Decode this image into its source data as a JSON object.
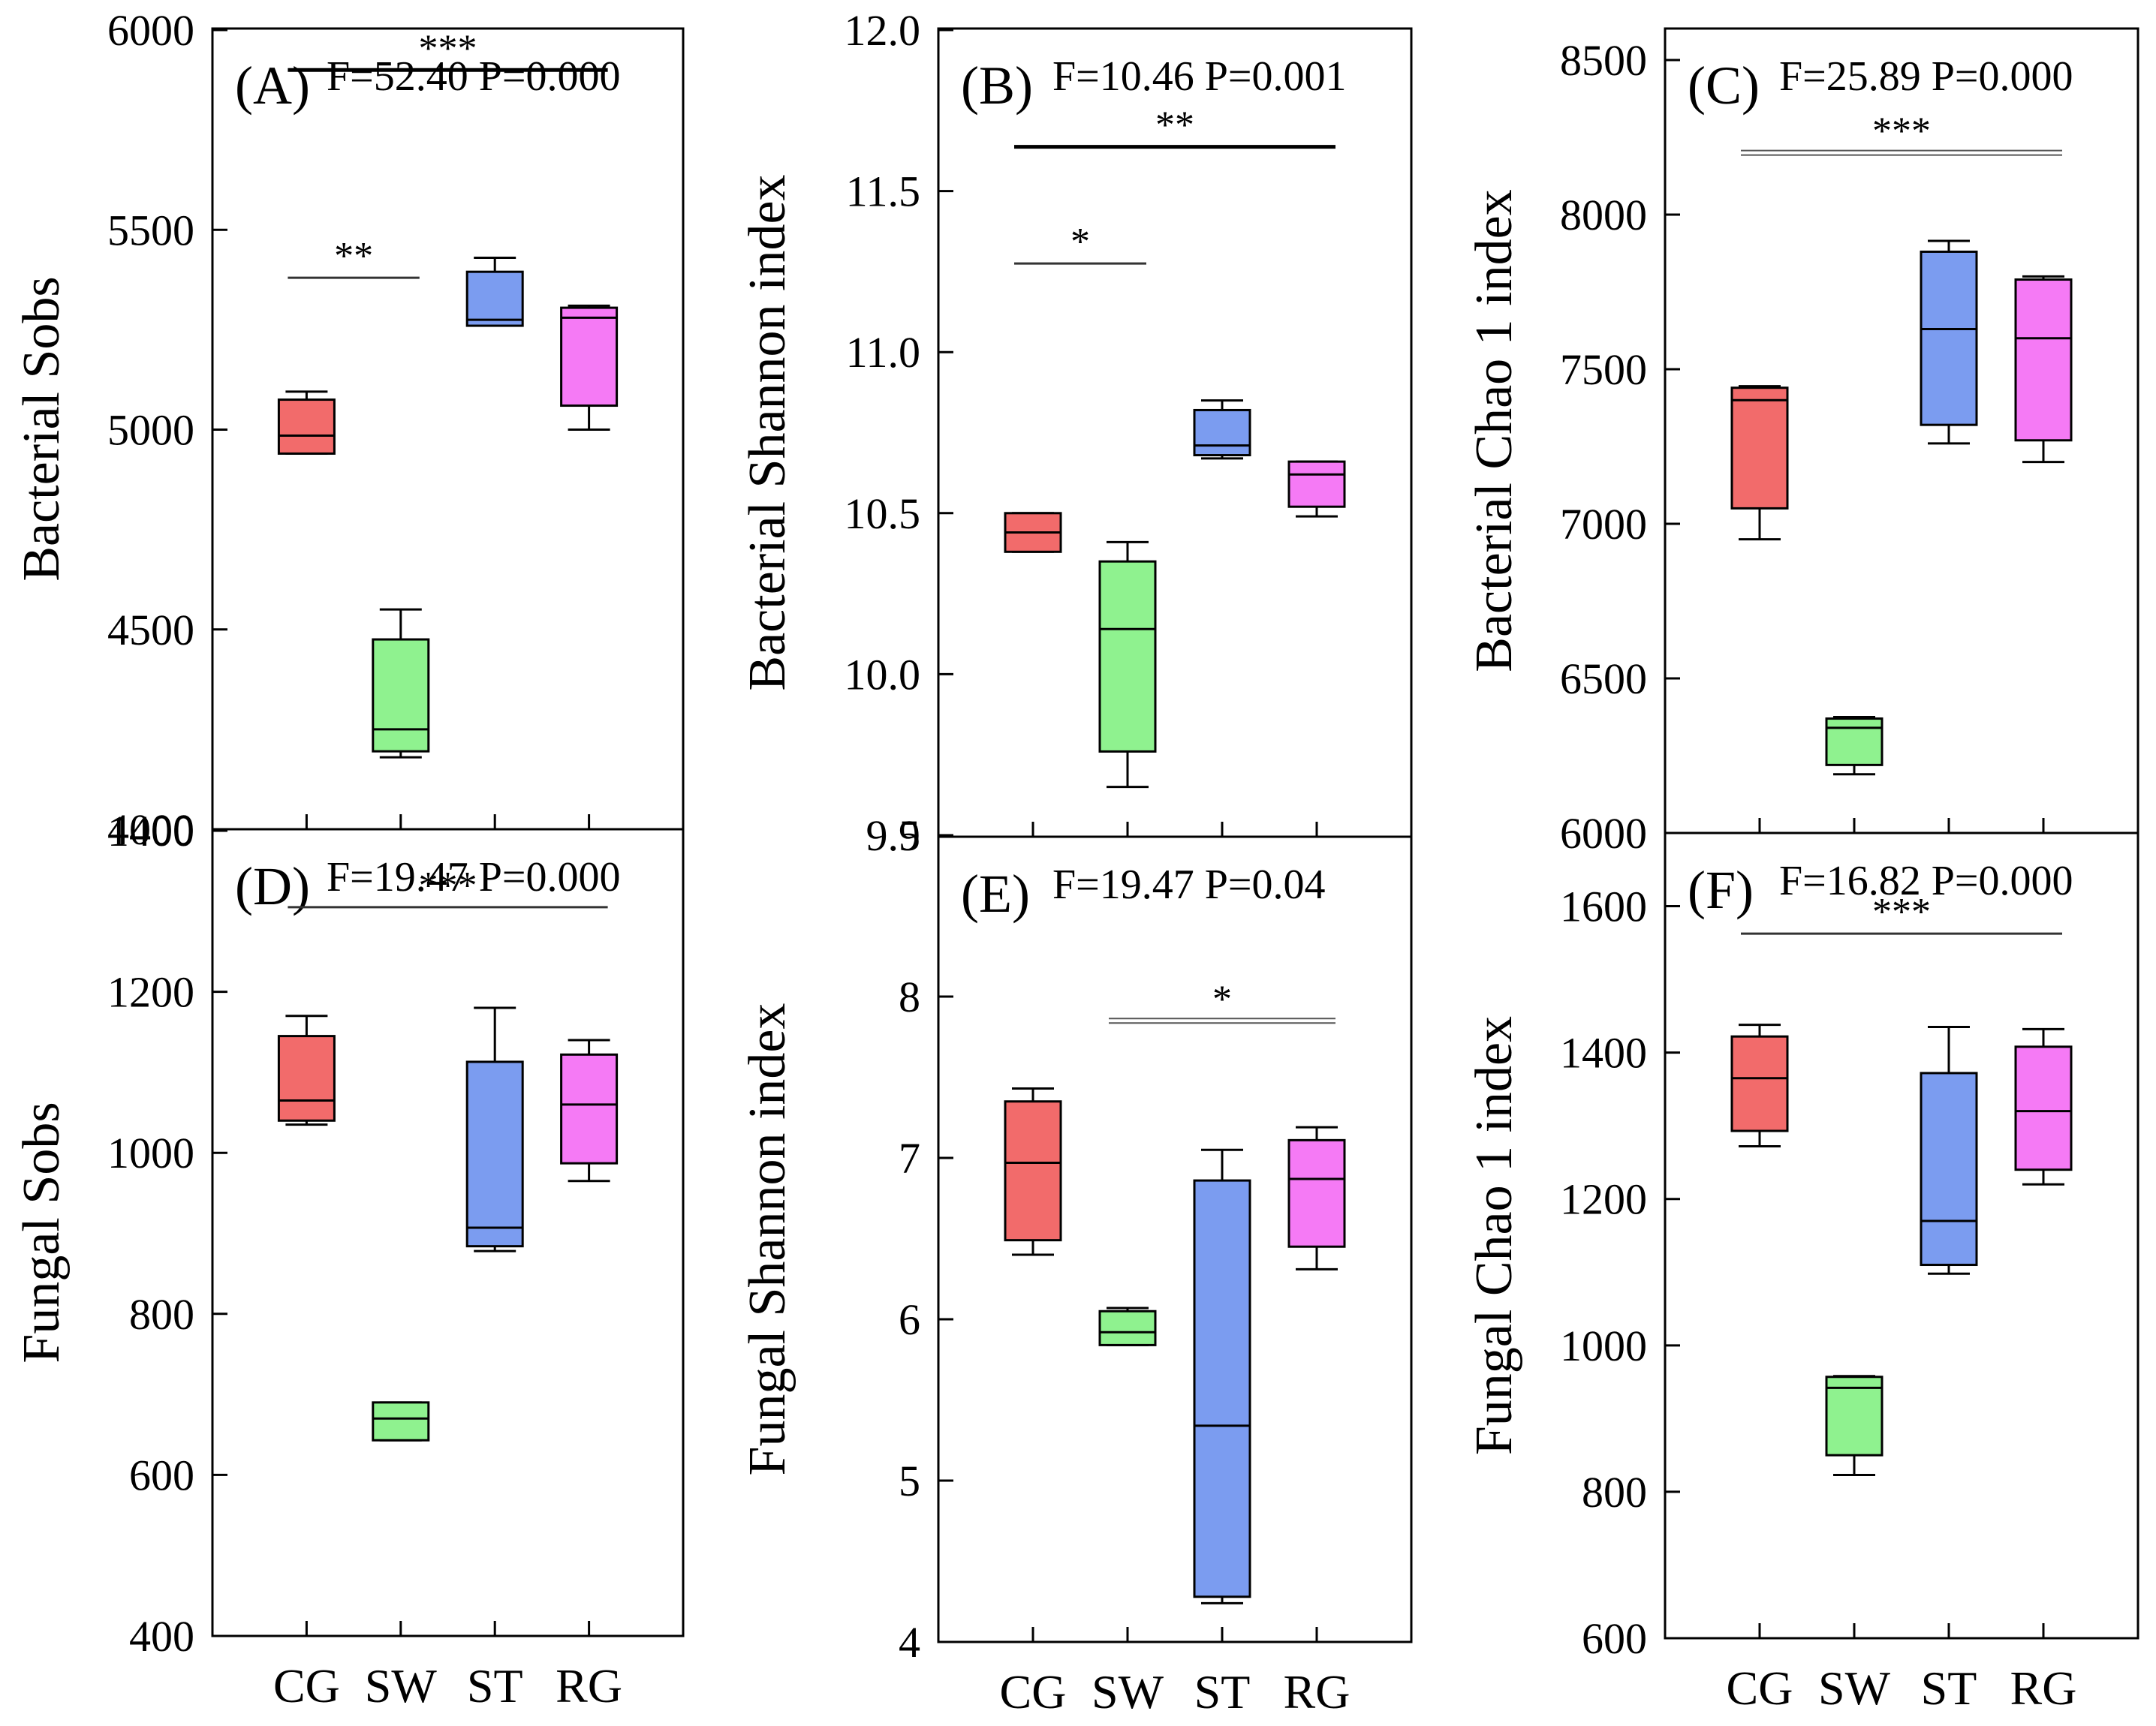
{
  "figure": {
    "categories": [
      "CG",
      "SW",
      "ST",
      "RG"
    ],
    "group_colors": {
      "CG": "#f26b6b",
      "SW": "#8ff28f",
      "ST": "#7b9cf0",
      "RG": "#f57af5"
    }
  },
  "chart_data": [
    {
      "id": "A",
      "type": "box",
      "panel_label": "(A)",
      "stats_text": "F=52.40  P=0.000",
      "ylabel": "Bacterial Sobs",
      "ylim": [
        4000,
        6000
      ],
      "ticks": [
        "4000",
        "4500",
        "5000",
        "5500",
        "6000"
      ],
      "categories": [
        "CG",
        "SW",
        "ST",
        "RG"
      ],
      "boxes": [
        {
          "group": "CG",
          "whisker_low": 4940,
          "q1": 4940,
          "median": 4985,
          "q3": 5075,
          "whisker_high": 5095
        },
        {
          "group": "SW",
          "whisker_low": 4180,
          "q1": 4195,
          "median": 4250,
          "q3": 4475,
          "whisker_high": 4550
        },
        {
          "group": "ST",
          "whisker_low": 5260,
          "q1": 5260,
          "median": 5275,
          "q3": 5395,
          "whisker_high": 5430
        },
        {
          "group": "RG",
          "whisker_low": 5000,
          "q1": 5060,
          "median": 5280,
          "q3": 5305,
          "whisker_high": 5310
        }
      ],
      "brackets": [
        {
          "from": "CG",
          "to": "RG",
          "label": "***",
          "level": 0.95,
          "style": "bold"
        },
        {
          "from": "CG",
          "to": "SW",
          "label": "**",
          "level": 0.69,
          "style": "thin"
        }
      ]
    },
    {
      "id": "B",
      "type": "box",
      "panel_label": "(B)",
      "stats_text": "F=10.46  P=0.001",
      "ylabel": "Bacterial Shannon index",
      "ylim": [
        9.5,
        12.0
      ],
      "ticks": [
        "9.5",
        "10.0",
        "10.5",
        "11.0",
        "11.5",
        "12.0"
      ],
      "categories": [
        "CG",
        "SW",
        "ST",
        "RG"
      ],
      "boxes": [
        {
          "group": "CG",
          "whisker_low": 10.38,
          "q1": 10.38,
          "median": 10.44,
          "q3": 10.5,
          "whisker_high": 10.5
        },
        {
          "group": "SW",
          "whisker_low": 9.65,
          "q1": 9.76,
          "median": 10.14,
          "q3": 10.35,
          "whisker_high": 10.41
        },
        {
          "group": "ST",
          "whisker_low": 10.67,
          "q1": 10.68,
          "median": 10.71,
          "q3": 10.82,
          "whisker_high": 10.85
        },
        {
          "group": "RG",
          "whisker_low": 10.49,
          "q1": 10.52,
          "median": 10.62,
          "q3": 10.66,
          "whisker_high": 10.66
        }
      ],
      "brackets": [
        {
          "from": "CG",
          "to": "RG",
          "label": "**",
          "level": 0.855,
          "style": "bold"
        },
        {
          "from": "CG",
          "to": "SW",
          "label": "*",
          "level": 0.71,
          "style": "thin"
        }
      ]
    },
    {
      "id": "C",
      "type": "box",
      "panel_label": "(C)",
      "stats_text": "F=25.89  P=0.000",
      "ylabel": "Bacterial Chao 1 index",
      "ylim": [
        6000,
        8500
      ],
      "ticks": [
        "6000",
        "6500",
        "7000",
        "7500",
        "8000",
        "8500"
      ],
      "categories": [
        "CG",
        "SW",
        "ST",
        "RG"
      ],
      "boxes": [
        {
          "group": "CG",
          "whisker_low": 6950,
          "q1": 7050,
          "median": 7400,
          "q3": 7440,
          "whisker_high": 7445
        },
        {
          "group": "SW",
          "whisker_low": 6190,
          "q1": 6220,
          "median": 6340,
          "q3": 6370,
          "whisker_high": 6375
        },
        {
          "group": "ST",
          "whisker_low": 7260,
          "q1": 7320,
          "median": 7630,
          "q3": 7880,
          "whisker_high": 7915
        },
        {
          "group": "RG",
          "whisker_low": 7200,
          "q1": 7270,
          "median": 7600,
          "q3": 7790,
          "whisker_high": 7800
        }
      ],
      "brackets": [
        {
          "from": "CG",
          "to": "RG",
          "label": "***",
          "level": 0.88,
          "style": "double"
        }
      ]
    },
    {
      "id": "D",
      "type": "box",
      "panel_label": "(D)",
      "stats_text": "F=19.47  P=0.000",
      "ylabel": "Fungal Sobs",
      "ylim": [
        400,
        1400
      ],
      "ticks": [
        "400",
        "600",
        "800",
        "1000",
        "1200",
        "1400"
      ],
      "categories": [
        "CG",
        "SW",
        "ST",
        "RG"
      ],
      "boxes": [
        {
          "group": "CG",
          "whisker_low": 1035,
          "q1": 1040,
          "median": 1065,
          "q3": 1145,
          "whisker_high": 1170
        },
        {
          "group": "SW",
          "whisker_low": 643,
          "q1": 643,
          "median": 670,
          "q3": 690,
          "whisker_high": 690
        },
        {
          "group": "ST",
          "whisker_low": 878,
          "q1": 884,
          "median": 907,
          "q3": 1113,
          "whisker_high": 1180
        },
        {
          "group": "RG",
          "whisker_low": 965,
          "q1": 987,
          "median": 1060,
          "q3": 1122,
          "whisker_high": 1140
        }
      ],
      "brackets": [
        {
          "from": "CG",
          "to": "RG",
          "label": "***",
          "level": 0.905,
          "style": "thin"
        }
      ]
    },
    {
      "id": "E",
      "type": "box",
      "panel_label": "(E)",
      "stats_text": "F=19.47  P=0.04",
      "ylabel": "Fungal Shannon index",
      "ylim": [
        4,
        9
      ],
      "ticks": [
        "4",
        "5",
        "6",
        "7",
        "8",
        "9"
      ],
      "categories": [
        "CG",
        "SW",
        "ST",
        "RG"
      ],
      "boxes": [
        {
          "group": "CG",
          "whisker_low": 6.4,
          "q1": 6.49,
          "median": 6.97,
          "q3": 7.35,
          "whisker_high": 7.43
        },
        {
          "group": "SW",
          "whisker_low": 5.84,
          "q1": 5.84,
          "median": 5.92,
          "q3": 6.05,
          "whisker_high": 6.07
        },
        {
          "group": "ST",
          "whisker_low": 4.24,
          "q1": 4.28,
          "median": 5.34,
          "q3": 6.86,
          "whisker_high": 7.05
        },
        {
          "group": "RG",
          "whisker_low": 6.31,
          "q1": 6.45,
          "median": 6.87,
          "q3": 7.11,
          "whisker_high": 7.19
        }
      ],
      "brackets": [
        {
          "from": "SW",
          "to": "RG",
          "label": "*",
          "level": 0.77,
          "style": "double"
        }
      ]
    },
    {
      "id": "F",
      "type": "box",
      "panel_label": "(F)",
      "stats_text": "F=16.82  P=0.000",
      "ylabel": "Fungal Chao 1 index",
      "ylim": [
        600,
        1700
      ],
      "ticks": [
        "600",
        "800",
        "1000",
        "1200",
        "1400",
        "1600"
      ],
      "categories": [
        "CG",
        "SW",
        "ST",
        "RG"
      ],
      "boxes": [
        {
          "group": "CG",
          "whisker_low": 1272,
          "q1": 1293,
          "median": 1365,
          "q3": 1422,
          "whisker_high": 1438
        },
        {
          "group": "SW",
          "whisker_low": 823,
          "q1": 850,
          "median": 942,
          "q3": 957,
          "whisker_high": 958
        },
        {
          "group": "ST",
          "whisker_low": 1098,
          "q1": 1110,
          "median": 1170,
          "q3": 1372,
          "whisker_high": 1435
        },
        {
          "group": "RG",
          "whisker_low": 1220,
          "q1": 1240,
          "median": 1320,
          "q3": 1408,
          "whisker_high": 1432
        }
      ],
      "brackets": [
        {
          "from": "CG",
          "to": "RG",
          "label": "***",
          "level": 0.875,
          "style": "thin"
        }
      ]
    }
  ]
}
